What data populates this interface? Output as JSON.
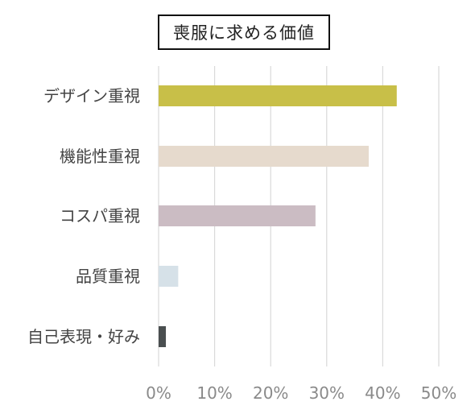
{
  "chart_data": {
    "type": "bar",
    "orientation": "horizontal",
    "title": "喪服に求める価値",
    "categories": [
      "デザイン重視",
      "機能性重視",
      "コスパ重視",
      "品質重視",
      "自己表現・好み"
    ],
    "values": [
      42.5,
      37.5,
      28,
      3.5,
      1.3
    ],
    "colors": [
      "#c8bf48",
      "#e6dacd",
      "#cbbcc3",
      "#d6e1e8",
      "#4a4f50"
    ],
    "x_ticks": [
      "0%",
      "10%",
      "20%",
      "30%",
      "40%",
      "50%"
    ],
    "xlim": [
      0,
      50
    ],
    "grid": true,
    "legend": "none"
  }
}
